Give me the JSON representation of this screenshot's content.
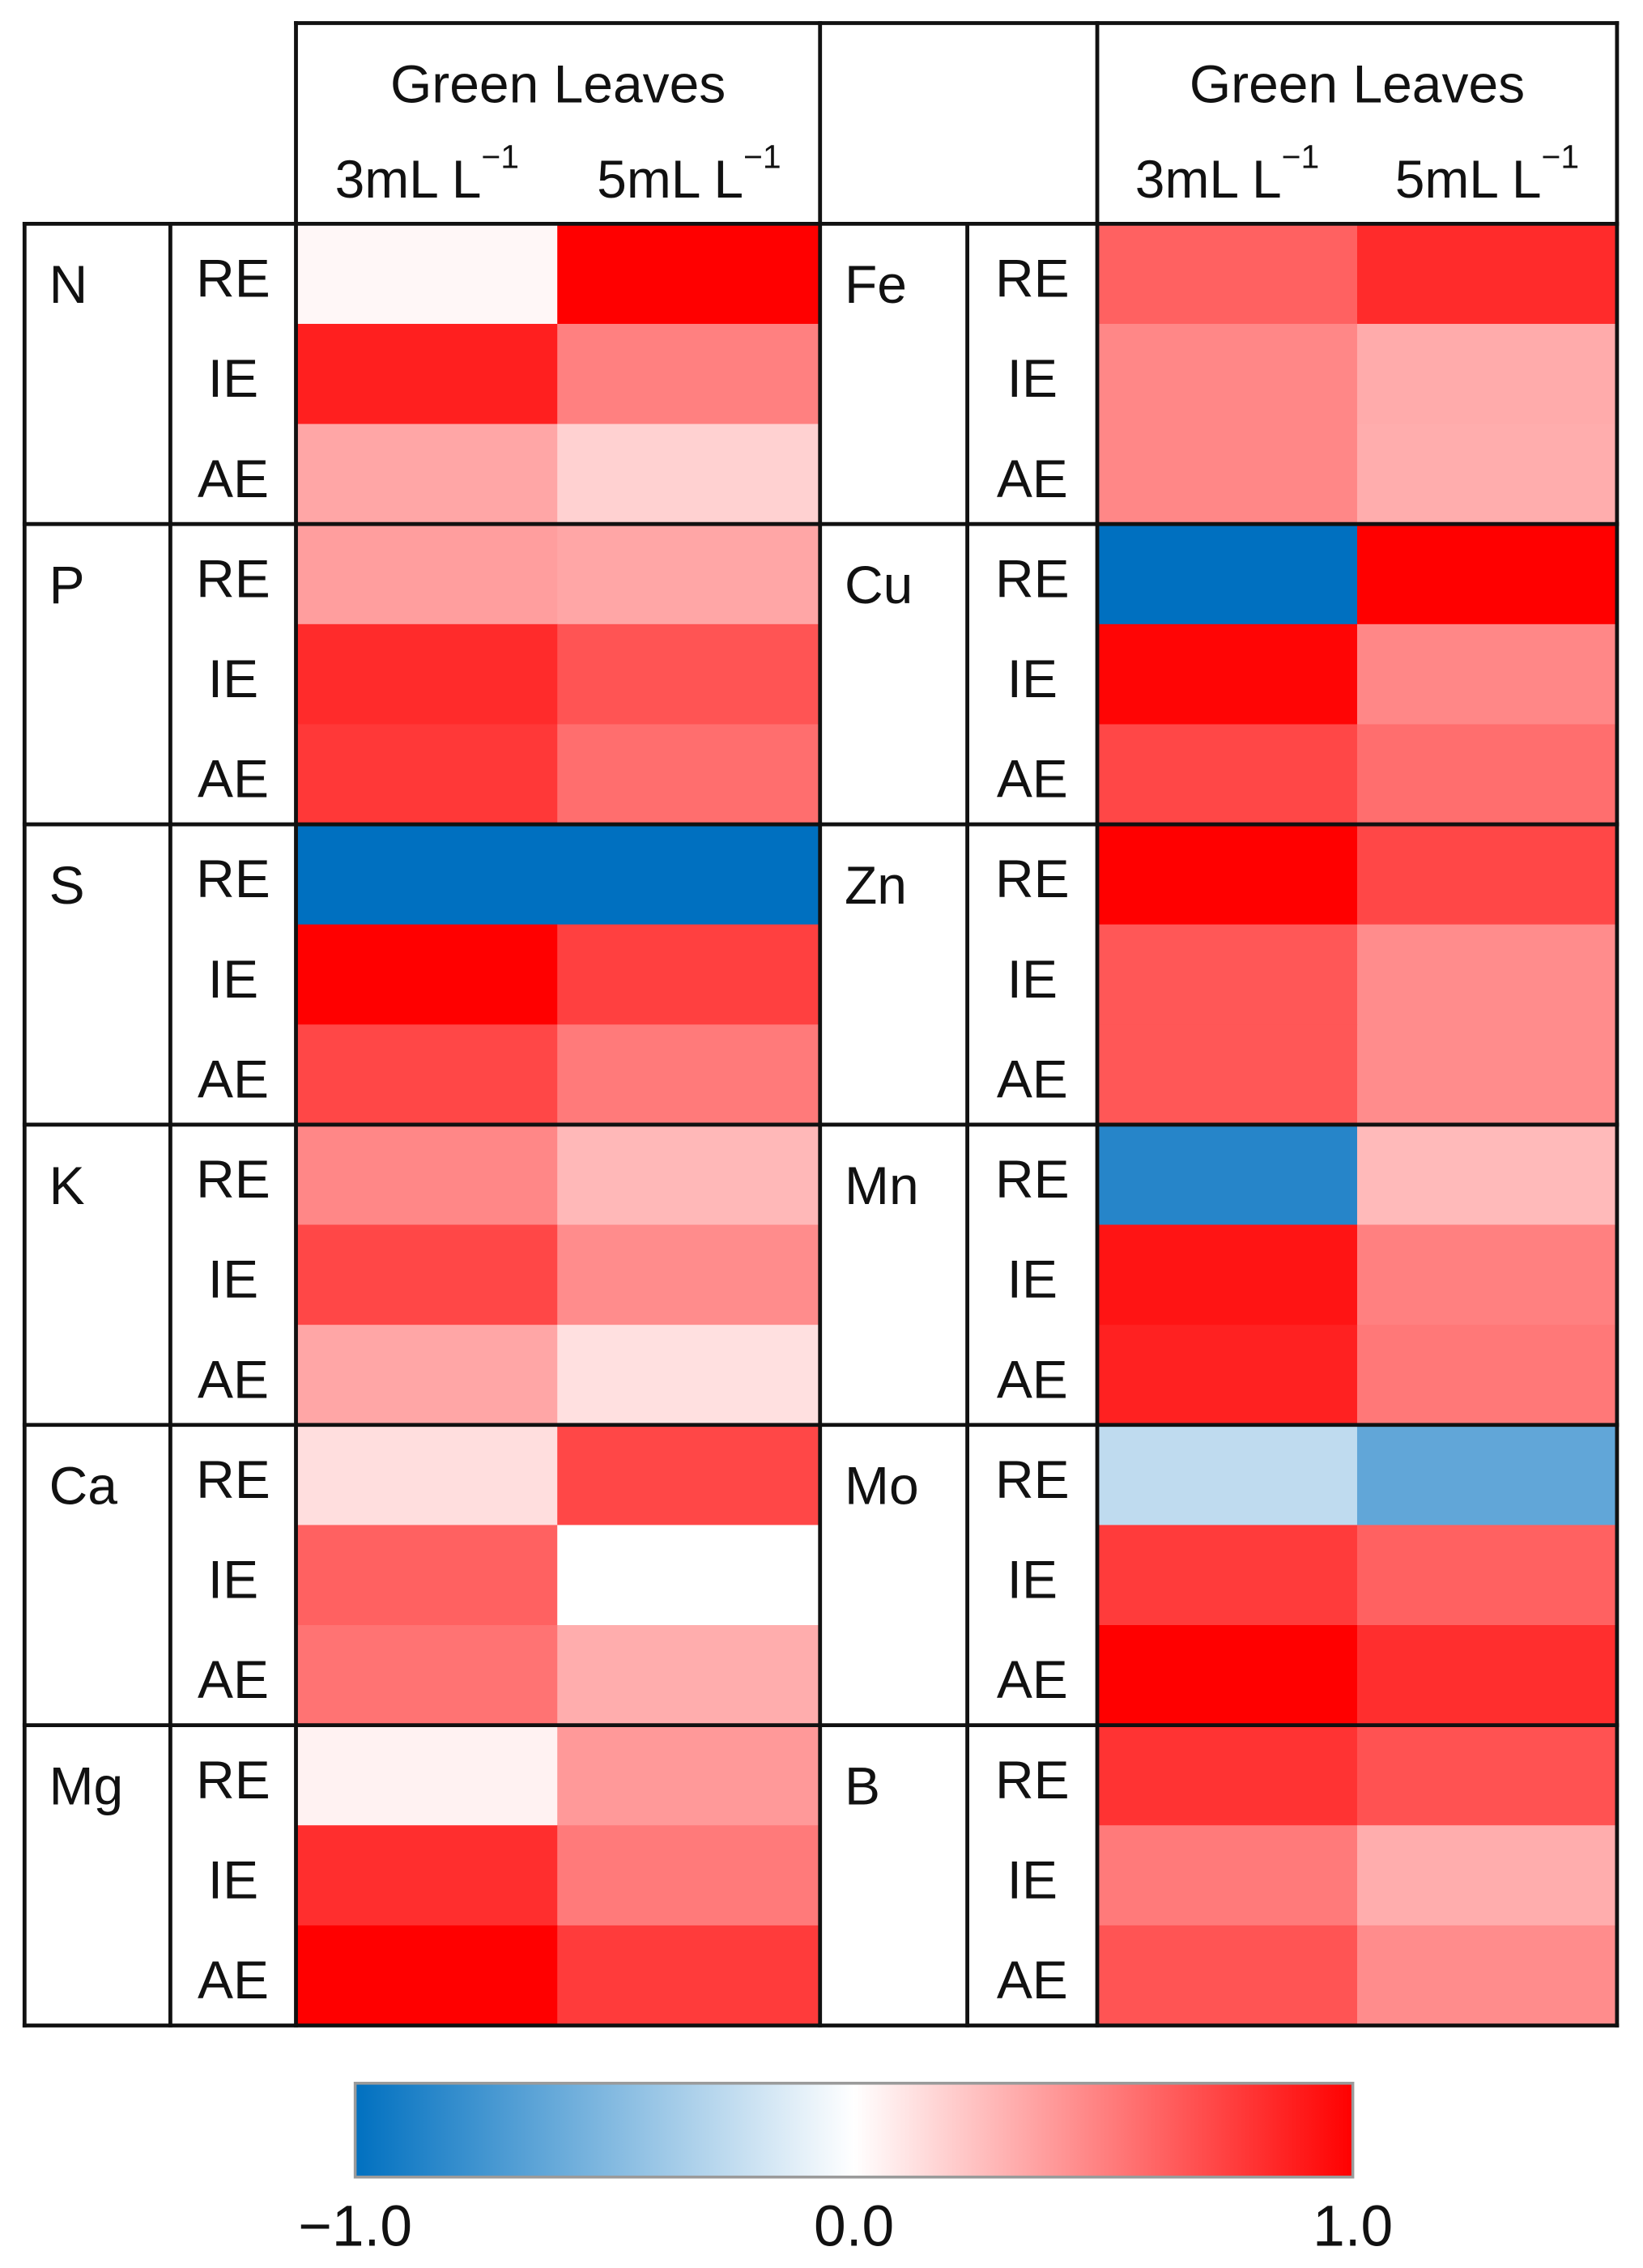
{
  "chart_data": {
    "type": "heatmap",
    "header": {
      "group_label": "Green Leaves",
      "column_labels": [
        {
          "base": "3mL L",
          "sup": "−1"
        },
        {
          "base": "5mL L",
          "sup": "−1"
        }
      ]
    },
    "scale": {
      "min": -1.0,
      "max": 1.0,
      "colors": {
        "negative": "#0070c0",
        "zero": "#ffffff",
        "positive": "#ff0000"
      },
      "tick_labels": [
        "−1.0",
        "0.0",
        "1.0"
      ]
    },
    "metrics": [
      "RE",
      "IE",
      "AE"
    ],
    "left_panel": [
      {
        "element": "N",
        "values": [
          [
            0.03,
            1.0
          ],
          [
            0.88,
            0.5
          ],
          [
            0.35,
            0.18
          ]
        ]
      },
      {
        "element": "P",
        "values": [
          [
            0.38,
            0.35
          ],
          [
            0.83,
            0.67
          ],
          [
            0.78,
            0.57
          ]
        ]
      },
      {
        "element": "S",
        "values": [
          [
            -1.0,
            -1.0
          ],
          [
            1.0,
            0.75
          ],
          [
            0.72,
            0.52
          ]
        ]
      },
      {
        "element": "K",
        "values": [
          [
            0.47,
            0.28
          ],
          [
            0.72,
            0.45
          ],
          [
            0.35,
            0.12
          ]
        ]
      },
      {
        "element": "Ca",
        "values": [
          [
            0.13,
            0.72
          ],
          [
            0.62,
            0.0
          ],
          [
            0.55,
            0.32
          ]
        ]
      },
      {
        "element": "Mg",
        "values": [
          [
            0.05,
            0.4
          ],
          [
            0.82,
            0.52
          ],
          [
            1.0,
            0.77
          ]
        ]
      }
    ],
    "right_panel": [
      {
        "element": "Fe",
        "values": [
          [
            0.62,
            0.83
          ],
          [
            0.47,
            0.33
          ],
          [
            0.47,
            0.32
          ]
        ]
      },
      {
        "element": "Cu",
        "values": [
          [
            -1.0,
            1.0
          ],
          [
            0.98,
            0.47
          ],
          [
            0.72,
            0.57
          ]
        ]
      },
      {
        "element": "Zn",
        "values": [
          [
            1.0,
            0.72
          ],
          [
            0.66,
            0.45
          ],
          [
            0.66,
            0.45
          ]
        ]
      },
      {
        "element": "Mn",
        "values": [
          [
            -0.85,
            0.27
          ],
          [
            0.92,
            0.5
          ],
          [
            0.87,
            0.53
          ]
        ]
      },
      {
        "element": "Mo",
        "values": [
          [
            -0.25,
            -0.62
          ],
          [
            0.77,
            0.62
          ],
          [
            1.0,
            0.82
          ]
        ]
      },
      {
        "element": "B",
        "values": [
          [
            0.8,
            0.68
          ],
          [
            0.52,
            0.32
          ],
          [
            0.67,
            0.45
          ]
        ]
      }
    ]
  }
}
